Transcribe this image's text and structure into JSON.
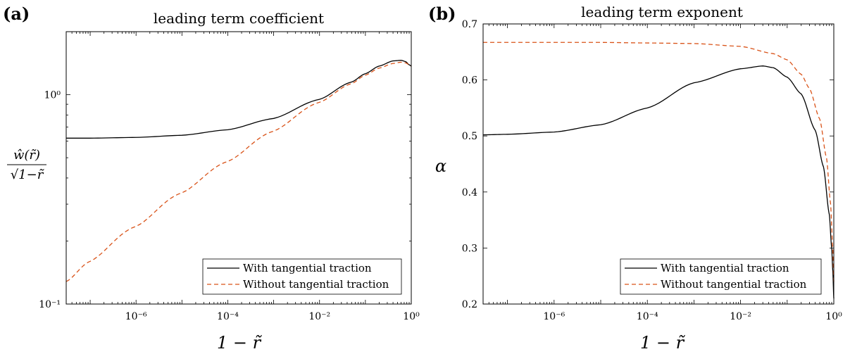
{
  "figure": {
    "panels": [
      {
        "tag": "(a)",
        "title": "leading term coefficient",
        "ylabel_num": "ŵ(r̃)",
        "ylabel_den": "√1−r̃",
        "xlabel": "1 − r̃",
        "yticks": [
          {
            "v": 0.1,
            "label": "10⁻¹"
          },
          {
            "v": 1,
            "label": "10⁰"
          }
        ],
        "xticks": [
          {
            "v": 1e-06,
            "label": "10⁻⁶"
          },
          {
            "v": 0.0001,
            "label": "10⁻⁴"
          },
          {
            "v": 0.01,
            "label": "10⁻²"
          },
          {
            "v": 1,
            "label": "10⁰"
          }
        ],
        "legend": [
          "With tangential traction",
          "Without tangential traction"
        ]
      },
      {
        "tag": "(b)",
        "title": "leading term exponent",
        "ylabel": "α",
        "xlabel": "1 − r̃",
        "yticks": [
          {
            "v": 0.2,
            "label": "0.2"
          },
          {
            "v": 0.3,
            "label": "0.3"
          },
          {
            "v": 0.4,
            "label": "0.4"
          },
          {
            "v": 0.5,
            "label": "0.5"
          },
          {
            "v": 0.6,
            "label": "0.6"
          },
          {
            "v": 0.7,
            "label": "0.7"
          }
        ],
        "xticks": [
          {
            "v": 1e-06,
            "label": "10⁻⁶"
          },
          {
            "v": 0.0001,
            "label": "10⁻⁴"
          },
          {
            "v": 0.01,
            "label": "10⁻²"
          },
          {
            "v": 1,
            "label": "10⁰"
          }
        ],
        "legend": [
          "With tangential traction",
          "Without tangential traction"
        ]
      }
    ]
  },
  "colors": {
    "with": "#000000",
    "without": "#d95319"
  },
  "chart_data": [
    {
      "type": "line",
      "title": "leading term coefficient",
      "xlabel": "1 − r̃",
      "ylabel": "ŵ(r̃)/√(1−r̃)",
      "xscale": "log",
      "yscale": "log",
      "xlim": [
        3e-08,
        1
      ],
      "ylim": [
        0.1,
        2
      ],
      "legend_position": "bottom-right",
      "grid": false,
      "series": [
        {
          "name": "With tangential traction",
          "style": "solid",
          "x": [
            3e-08,
            1e-07,
            1e-06,
            1e-05,
            0.0001,
            0.001,
            0.01,
            0.05,
            0.1,
            0.2,
            0.4,
            0.6,
            0.75,
            0.9,
            1
          ],
          "y": [
            0.62,
            0.62,
            0.625,
            0.64,
            0.68,
            0.77,
            0.95,
            1.15,
            1.26,
            1.37,
            1.45,
            1.46,
            1.44,
            1.39,
            1.37
          ]
        },
        {
          "name": "Without tangential traction",
          "style": "dashed",
          "x": [
            3e-08,
            1e-07,
            1e-06,
            1e-05,
            0.0001,
            0.001,
            0.01,
            0.05,
            0.1,
            0.2,
            0.4,
            0.6,
            0.75,
            0.9,
            1
          ],
          "y": [
            0.128,
            0.16,
            0.235,
            0.34,
            0.48,
            0.67,
            0.92,
            1.13,
            1.24,
            1.34,
            1.41,
            1.43,
            1.42,
            1.39,
            1.37
          ]
        }
      ]
    },
    {
      "type": "line",
      "title": "leading term exponent",
      "xlabel": "1 − r̃",
      "ylabel": "α",
      "xscale": "log",
      "yscale": "linear",
      "xlim": [
        3e-08,
        1
      ],
      "ylim": [
        0.2,
        0.7
      ],
      "legend_position": "bottom-right",
      "grid": false,
      "series": [
        {
          "name": "With tangential traction",
          "style": "solid",
          "x": [
            3e-08,
            1e-07,
            1e-06,
            1e-05,
            0.0001,
            0.001,
            0.01,
            0.03,
            0.05,
            0.1,
            0.2,
            0.4,
            0.6,
            0.8,
            0.9,
            0.95,
            1
          ],
          "y": [
            0.502,
            0.503,
            0.507,
            0.52,
            0.55,
            0.595,
            0.62,
            0.625,
            0.622,
            0.605,
            0.575,
            0.51,
            0.445,
            0.36,
            0.3,
            0.26,
            0.21
          ]
        },
        {
          "name": "Without tangential traction",
          "style": "dashed",
          "x": [
            3e-08,
            1e-07,
            1e-06,
            1e-05,
            0.0001,
            0.001,
            0.01,
            0.05,
            0.1,
            0.2,
            0.3,
            0.5,
            0.7,
            0.85,
            0.95,
            1
          ],
          "y": [
            0.667,
            0.667,
            0.667,
            0.667,
            0.666,
            0.665,
            0.66,
            0.647,
            0.636,
            0.61,
            0.585,
            0.53,
            0.46,
            0.38,
            0.3,
            0.24
          ]
        }
      ]
    }
  ]
}
